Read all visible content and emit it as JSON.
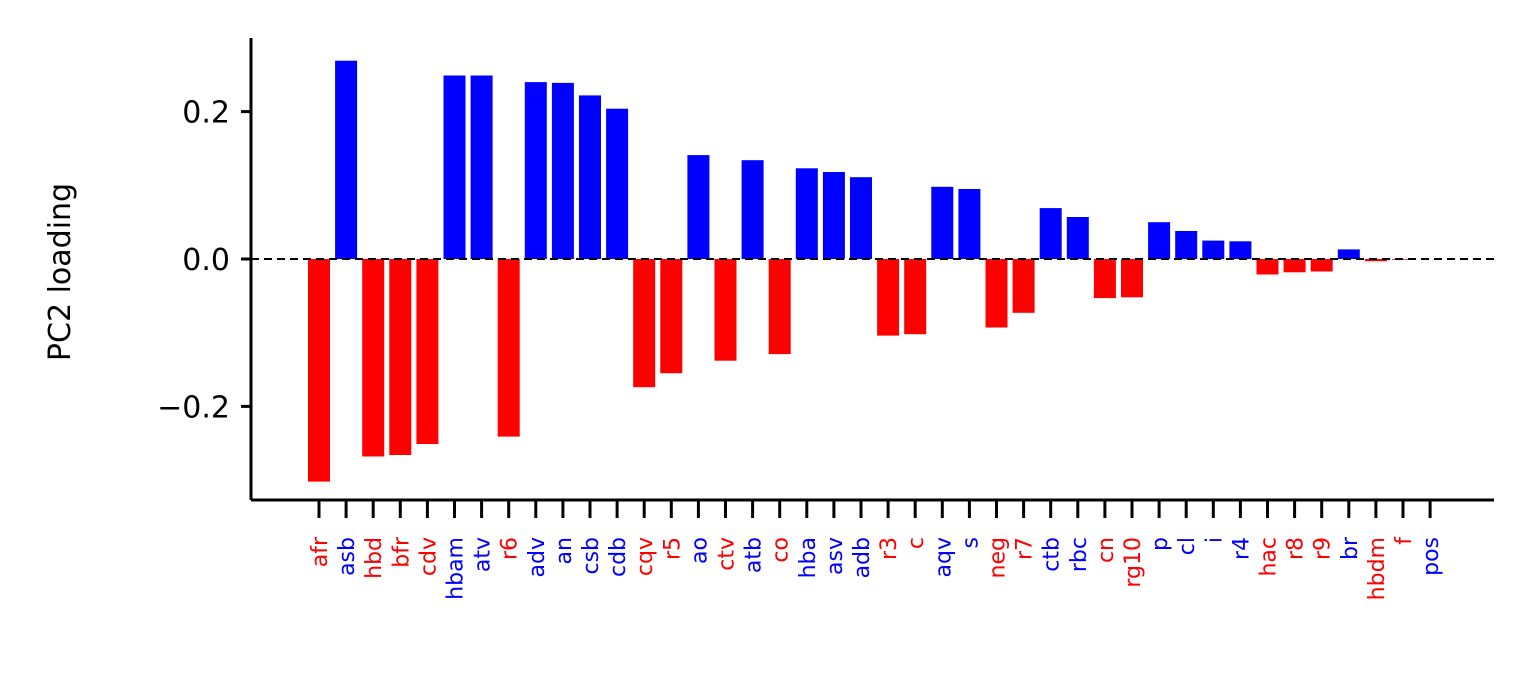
{
  "chart_data": {
    "type": "bar",
    "ylabel": "PC2 loading",
    "ylim": [
      -0.33,
      0.3
    ],
    "yticks": [
      -0.2,
      0.0,
      0.2
    ],
    "ytick_labels": [
      "−0.2",
      "0.0",
      "0.2"
    ],
    "zero_line": "dashed",
    "grid": false,
    "colors": {
      "positive": "#0000ff",
      "negative": "#ff0000"
    },
    "categories": [
      "afr",
      "asb",
      "hbd",
      "bfr",
      "cdv",
      "hbam",
      "atv",
      "r6",
      "adv",
      "an",
      "csb",
      "cdb",
      "cqv",
      "r5",
      "ao",
      "ctv",
      "atb",
      "co",
      "hba",
      "asv",
      "adb",
      "r3",
      "c",
      "aqv",
      "s",
      "neg",
      "r7",
      "ctb",
      "rbc",
      "cn",
      "rg10",
      "p",
      "cl",
      "i",
      "r4",
      "hac",
      "r8",
      "r9",
      "br",
      "hbdm",
      "f",
      "pos"
    ],
    "values": [
      -0.302,
      0.269,
      -0.268,
      -0.266,
      -0.251,
      0.249,
      0.249,
      -0.241,
      0.24,
      0.239,
      0.222,
      0.204,
      -0.174,
      -0.155,
      0.141,
      -0.138,
      0.134,
      -0.129,
      0.123,
      0.118,
      0.111,
      -0.104,
      -0.102,
      0.098,
      0.095,
      -0.093,
      -0.073,
      0.069,
      0.057,
      -0.053,
      -0.052,
      0.05,
      0.038,
      0.025,
      0.024,
      -0.021,
      -0.018,
      -0.017,
      0.013,
      -0.003,
      -0.001,
      0.0
    ]
  }
}
